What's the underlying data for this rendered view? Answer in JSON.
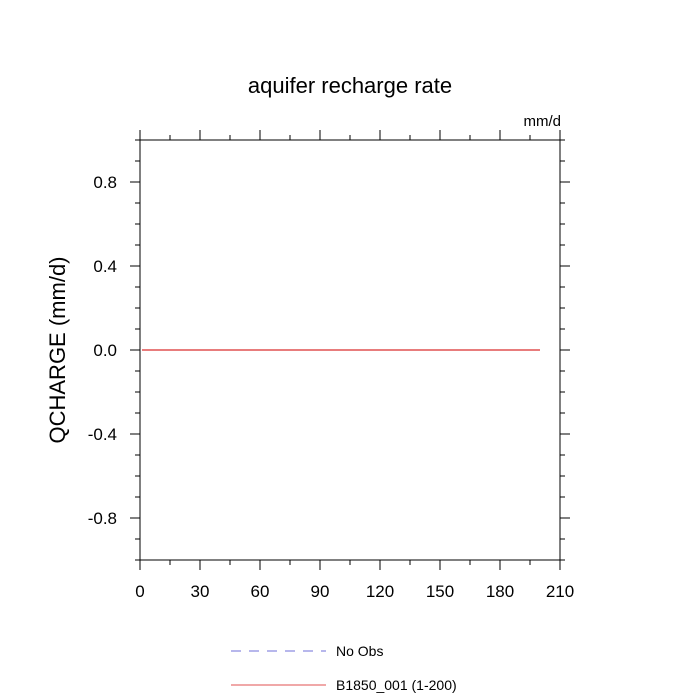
{
  "chart_data": {
    "type": "line",
    "title": "aquifer recharge rate",
    "unit_label": "mm/d",
    "xlabel": "",
    "ylabel": "QCHARGE  (mm/d)",
    "xlim": [
      0,
      210
    ],
    "ylim": [
      -1,
      1
    ],
    "x_ticks": [
      0,
      30,
      60,
      90,
      120,
      150,
      180,
      210
    ],
    "x_tick_labels": [
      "0",
      "30",
      "60",
      "90",
      "120",
      "150",
      "180",
      "210"
    ],
    "y_ticks": [
      0.8,
      0.4,
      0.0,
      -0.4,
      -0.8
    ],
    "y_tick_labels": [
      "0.8",
      "0.4",
      "0.0",
      "-0.4",
      "-0.8"
    ],
    "grid": false,
    "legend_position": "bottom",
    "series": [
      {
        "name": "No Obs",
        "color": "#6f6fd8",
        "dash": "dashed",
        "x": [],
        "y": []
      },
      {
        "name": "B1850_001 (1-200)",
        "color": "#e05050",
        "dash": "solid",
        "x": [
          1,
          200
        ],
        "y": [
          0.0,
          0.0
        ]
      }
    ]
  }
}
